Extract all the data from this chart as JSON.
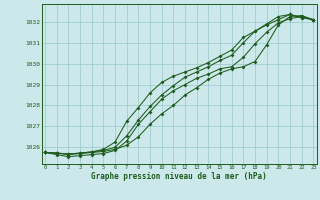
{
  "title": "Graphe pression niveau de la mer (hPa)",
  "bg_color": "#cce8ea",
  "line_color": "#1e5c1e",
  "grid_color": "#99c8ca",
  "x_ticks": [
    0,
    1,
    2,
    3,
    4,
    5,
    6,
    7,
    8,
    9,
    10,
    11,
    12,
    13,
    14,
    15,
    16,
    17,
    18,
    19,
    20,
    21,
    22,
    23
  ],
  "y_ticks": [
    1026,
    1027,
    1028,
    1029,
    1030,
    1031,
    1032
  ],
  "ylim": [
    1025.2,
    1032.85
  ],
  "xlim": [
    -0.3,
    23.3
  ],
  "series": [
    [
      1025.75,
      1025.72,
      1025.65,
      1025.7,
      1025.75,
      1025.8,
      1025.9,
      1026.1,
      1026.5,
      1027.1,
      1027.6,
      1028.0,
      1028.5,
      1028.85,
      1029.25,
      1029.55,
      1029.75,
      1029.85,
      1030.1,
      1030.9,
      1031.85,
      1032.25,
      1032.3,
      1032.1
    ],
    [
      1025.75,
      1025.65,
      1025.55,
      1025.6,
      1025.65,
      1025.7,
      1025.85,
      1026.3,
      1027.1,
      1027.7,
      1028.3,
      1028.7,
      1029.0,
      1029.3,
      1029.5,
      1029.75,
      1029.85,
      1030.3,
      1030.95,
      1031.5,
      1031.95,
      1032.15,
      1032.25,
      1032.1
    ],
    [
      1025.75,
      1025.72,
      1025.68,
      1025.72,
      1025.78,
      1025.85,
      1026.0,
      1026.55,
      1027.3,
      1027.95,
      1028.5,
      1028.95,
      1029.35,
      1029.6,
      1029.85,
      1030.15,
      1030.4,
      1031.0,
      1031.55,
      1031.9,
      1032.25,
      1032.35,
      1032.2,
      1032.1
    ],
    [
      1025.75,
      1025.72,
      1025.68,
      1025.72,
      1025.78,
      1025.9,
      1026.25,
      1027.25,
      1027.9,
      1028.6,
      1029.1,
      1029.4,
      1029.6,
      1029.8,
      1030.05,
      1030.35,
      1030.65,
      1031.25,
      1031.55,
      1031.85,
      1032.1,
      1032.35,
      1032.2,
      1032.1
    ]
  ]
}
